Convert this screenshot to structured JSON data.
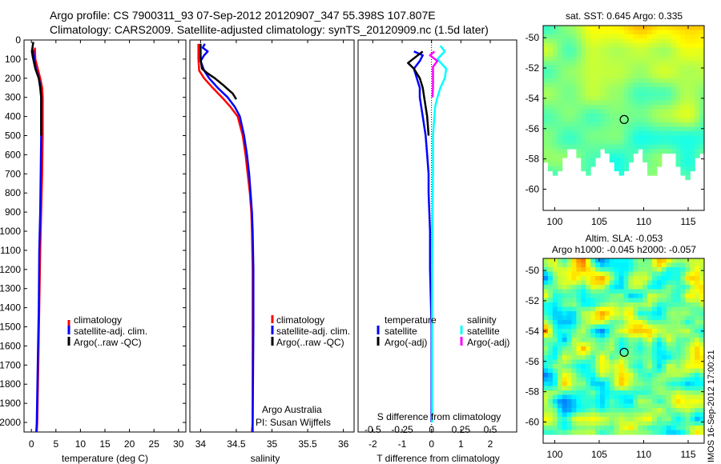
{
  "header": {
    "line1": "Argo profile: CS 7900311_93 07-Sep-2012 20120907_347 55.398S 107.807E",
    "line2": "Climatology: CARS2009. Satellite-adjusted climatology: synTS_20120909.nc (1.5d later)"
  },
  "colors": {
    "climatology": "#ff0000",
    "satellite": "#0000ff",
    "argo": "#000000",
    "sal_satellite": "#00ffff",
    "sal_argo": "#ff00ff"
  },
  "chart_data": [
    {
      "type": "line",
      "id": "temperature",
      "xlabel": "temperature (deg C)",
      "xlim": [
        -1.5,
        31.5
      ],
      "ylim": [
        2050,
        0
      ],
      "yticks": [
        0,
        100,
        200,
        300,
        400,
        500,
        600,
        700,
        800,
        900,
        1000,
        1100,
        1200,
        1300,
        1400,
        1500,
        1600,
        1700,
        1800,
        1900,
        2000
      ],
      "xticks": [
        0,
        5,
        10,
        15,
        20,
        25,
        30
      ],
      "legend": [
        "climatology",
        "satellite-adj. clim.",
        "Argo(..raw -QC)"
      ],
      "series": [
        {
          "name": "climatology",
          "color": "climatology",
          "points": [
            [
              0.7,
              40
            ],
            [
              0.8,
              100
            ],
            [
              1.3,
              150
            ],
            [
              1.8,
              200
            ],
            [
              2.2,
              250
            ],
            [
              2.3,
              300
            ],
            [
              2.3,
              400
            ],
            [
              2.3,
              500
            ],
            [
              2.2,
              700
            ],
            [
              2.0,
              900
            ],
            [
              1.8,
              1100
            ],
            [
              1.6,
              1400
            ],
            [
              1.4,
              1700
            ],
            [
              1.2,
              2000
            ],
            [
              1.1,
              2050
            ]
          ]
        },
        {
          "name": "satellite-adj. clim.",
          "color": "satellite",
          "points": [
            [
              0.3,
              50
            ],
            [
              0.5,
              80
            ],
            [
              0.9,
              150
            ],
            [
              1.3,
              180
            ],
            [
              1.8,
              230
            ],
            [
              2.0,
              300
            ],
            [
              2.0,
              500
            ],
            [
              1.9,
              700
            ],
            [
              1.8,
              900
            ],
            [
              1.6,
              1100
            ],
            [
              1.5,
              1400
            ],
            [
              1.3,
              1700
            ],
            [
              1.1,
              2000
            ],
            [
              1.0,
              2050
            ]
          ]
        },
        {
          "name": "Argo(..raw -QC)",
          "color": "argo",
          "points": [
            [
              0.4,
              10
            ],
            [
              0.1,
              60
            ],
            [
              0.3,
              90
            ],
            [
              0.8,
              150
            ],
            [
              1.5,
              200
            ],
            [
              1.8,
              250
            ],
            [
              2.0,
              300
            ],
            [
              2.0,
              500
            ]
          ]
        }
      ]
    },
    {
      "type": "line",
      "id": "salinity",
      "xlabel": "salinity",
      "xlim": [
        33.85,
        36.15
      ],
      "ylim": [
        2050,
        0
      ],
      "xticks": [
        34,
        34.5,
        35,
        35.5,
        36
      ],
      "xticklabels": [
        "34",
        "34.5",
        "35",
        "35.5",
        "36"
      ],
      "legend": [
        "climatology",
        "satellite-adj. clim.",
        "Argo(..raw -QC)"
      ],
      "annotation": [
        "Argo Australia",
        "PI: Susan Wijffels"
      ],
      "series": [
        {
          "name": "climatology",
          "color": "climatology",
          "points": [
            [
              33.97,
              20
            ],
            [
              33.97,
              100
            ],
            [
              33.98,
              160
            ],
            [
              34.05,
              200
            ],
            [
              34.17,
              250
            ],
            [
              34.3,
              300
            ],
            [
              34.42,
              350
            ],
            [
              34.52,
              400
            ],
            [
              34.59,
              500
            ],
            [
              34.63,
              600
            ],
            [
              34.66,
              700
            ],
            [
              34.69,
              800
            ],
            [
              34.71,
              900
            ],
            [
              34.72,
              1000
            ],
            [
              34.73,
              1200
            ],
            [
              34.73,
              1500
            ],
            [
              34.73,
              2000
            ],
            [
              34.72,
              2050
            ]
          ]
        },
        {
          "name": "satellite-adj. clim.",
          "color": "satellite",
          "points": [
            [
              34.06,
              20
            ],
            [
              34.03,
              40
            ],
            [
              34.1,
              60
            ],
            [
              34.05,
              80
            ],
            [
              34.0,
              110
            ],
            [
              34.05,
              160
            ],
            [
              34.12,
              200
            ],
            [
              34.24,
              250
            ],
            [
              34.38,
              300
            ],
            [
              34.48,
              350
            ],
            [
              34.55,
              400
            ],
            [
              34.61,
              500
            ],
            [
              34.65,
              600
            ],
            [
              34.68,
              700
            ],
            [
              34.7,
              800
            ],
            [
              34.72,
              900
            ],
            [
              34.73,
              1000
            ],
            [
              34.74,
              1200
            ],
            [
              34.74,
              1500
            ],
            [
              34.73,
              2000
            ],
            [
              34.73,
              2050
            ]
          ]
        },
        {
          "name": "Argo(..raw -QC)",
          "color": "argo",
          "points": [
            [
              34.0,
              20
            ],
            [
              34.0,
              100
            ],
            [
              34.02,
              150
            ],
            [
              34.1,
              175
            ],
            [
              34.2,
              200
            ],
            [
              34.33,
              240
            ],
            [
              34.45,
              280
            ],
            [
              34.5,
              310
            ]
          ]
        }
      ]
    },
    {
      "type": "line",
      "id": "difference",
      "xlabel": "T difference from climatology",
      "xlabel_top": "S difference from climatology",
      "xlim": [
        -2.5,
        2.9
      ],
      "ylim": [
        2050,
        0
      ],
      "xticks": [
        -2,
        -1,
        0,
        1,
        2
      ],
      "xticklabels": [
        "-2",
        "-1",
        "0",
        "1",
        "2"
      ],
      "xticks_top": [
        -0.5,
        -0.25,
        0,
        0.25,
        0.5
      ],
      "xticklabels_top": [
        "-0.5",
        "-0.25",
        "0",
        "0.25",
        "0.5"
      ],
      "legend_temperature": {
        "title": "temperature",
        "items": [
          "satellite",
          "Argo(-adj)"
        ]
      },
      "legend_salinity": {
        "title": "salinity",
        "items": [
          "satellite",
          "Argo(-adj)"
        ]
      },
      "series": [
        {
          "name": "T satellite",
          "color": "satellite",
          "points": [
            [
              -0.6,
              60
            ],
            [
              -0.3,
              80
            ],
            [
              -0.4,
              110
            ],
            [
              -0.6,
              150
            ],
            [
              -0.5,
              200
            ],
            [
              -0.4,
              250
            ],
            [
              -0.4,
              300
            ],
            [
              -0.3,
              400
            ],
            [
              -0.2,
              500
            ],
            [
              -0.15,
              600
            ],
            [
              -0.1,
              700
            ],
            [
              -0.1,
              800
            ],
            [
              -0.05,
              1000
            ],
            [
              -0.05,
              1200
            ],
            [
              0,
              1500
            ],
            [
              0,
              2000
            ]
          ]
        },
        {
          "name": "T Argo(-adj)",
          "color": "argo",
          "points": [
            [
              -0.3,
              60
            ],
            [
              -0.8,
              120
            ],
            [
              -0.6,
              150
            ],
            [
              -0.4,
              200
            ],
            [
              -0.3,
              250
            ],
            [
              -0.25,
              300
            ],
            [
              -0.15,
              400
            ],
            [
              -0.1,
              500
            ]
          ]
        },
        {
          "name": "S satellite",
          "color": "sal_satellite",
          "points": [
            [
              0.3,
              30
            ],
            [
              0.45,
              60
            ],
            [
              0.2,
              100
            ],
            [
              0.5,
              150
            ],
            [
              0.45,
              200
            ],
            [
              0.3,
              250
            ],
            [
              0.2,
              300
            ],
            [
              0.12,
              350
            ],
            [
              0.1,
              400
            ],
            [
              0.05,
              500
            ],
            [
              0.05,
              700
            ],
            [
              0.03,
              900
            ],
            [
              0.02,
              1200
            ],
            [
              0.02,
              1500
            ],
            [
              0.02,
              2000
            ]
          ]
        },
        {
          "name": "S Argo(-adj)",
          "color": "sal_argo",
          "points": [
            [
              0.1,
              60
            ],
            [
              -0.05,
              80
            ],
            [
              0.2,
              110
            ],
            [
              0.05,
              140
            ],
            [
              0.05,
              200
            ],
            [
              0.05,
              250
            ],
            [
              0.03,
              300
            ]
          ]
        }
      ]
    }
  ],
  "maps": {
    "sst": {
      "title": "sat. SST: 0.645 Argo: 0.335",
      "yticklabels": [
        "-50",
        "-52",
        "-54",
        "-56",
        "-58",
        "-60"
      ],
      "xticklabels": [
        "100",
        "105",
        "110",
        "115"
      ],
      "marker": [
        107.807,
        -55.398
      ]
    },
    "sla": {
      "title_line1": "Altim. SLA: -0.053",
      "title_line2": "Argo h1000: -0.045 h2000: -0.057",
      "yticklabels": [
        "-50",
        "-52",
        "-54",
        "-56",
        "-58",
        "-60"
      ],
      "xticklabels": [
        "100",
        "105",
        "110",
        "115"
      ],
      "marker": [
        107.807,
        -55.398
      ]
    }
  },
  "imos_stamp": "IMOS 16-Sep-2012 17:00:21"
}
